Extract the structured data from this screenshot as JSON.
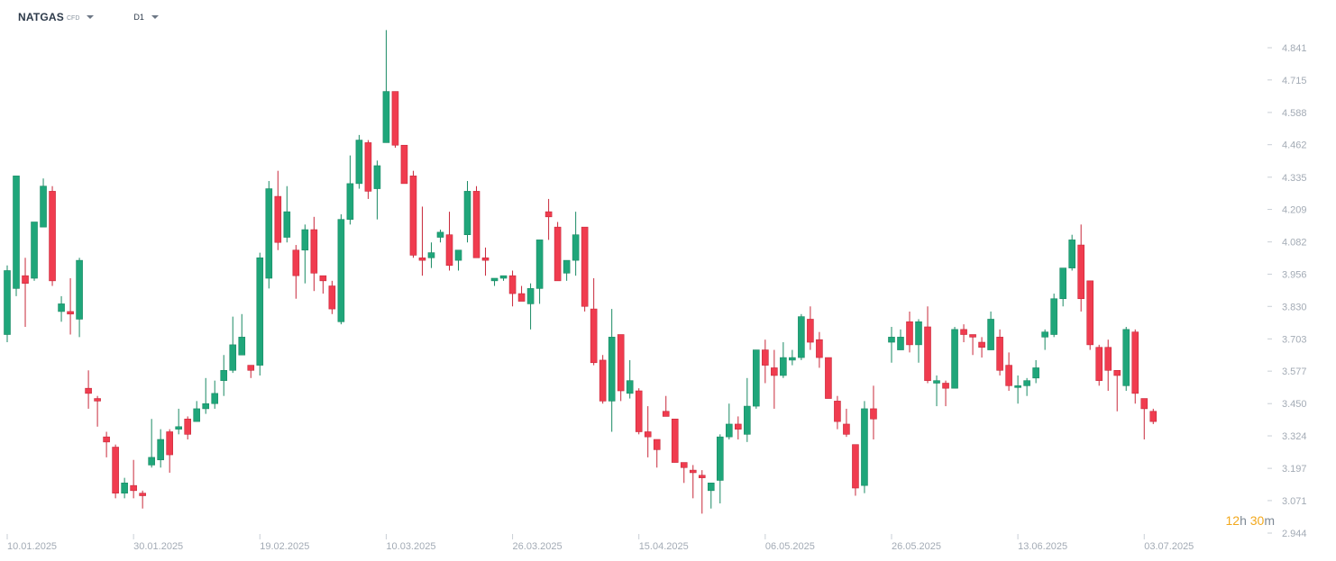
{
  "toolbar": {
    "symbol": "NATGAS",
    "symbol_sub": "CFD",
    "timeframe": "D1"
  },
  "countdown": {
    "hours": "12",
    "h": "h",
    "minutes": "30",
    "m": "m"
  },
  "colors": {
    "up": "#1fa67a",
    "down": "#f03c4f",
    "wick_up": "#1a8a64",
    "wick_down": "#c8283a",
    "axis_text": "#a3abb5",
    "timer": "#f2a81d"
  },
  "chart_data": {
    "type": "candlestick",
    "title": "",
    "ylim": [
      2.944,
      4.92
    ],
    "y_ticks": [
      "4.841",
      "4.715",
      "4.588",
      "4.462",
      "4.335",
      "4.209",
      "4.082",
      "3.956",
      "3.830",
      "3.703",
      "3.577",
      "3.450",
      "3.324",
      "3.197",
      "3.071",
      "2.944"
    ],
    "x_labels": [
      {
        "index": 0,
        "label": "10.01.2025"
      },
      {
        "index": 14,
        "label": "30.01.2025"
      },
      {
        "index": 28,
        "label": "19.02.2025"
      },
      {
        "index": 42,
        "label": "10.03.2025"
      },
      {
        "index": 56,
        "label": "26.03.2025"
      },
      {
        "index": 70,
        "label": "15.04.2025"
      },
      {
        "index": 84,
        "label": "06.05.2025"
      },
      {
        "index": 98,
        "label": "26.05.2025"
      },
      {
        "index": 112,
        "label": "13.06.2025"
      },
      {
        "index": 126,
        "label": "03.07.2025"
      }
    ],
    "candles": [
      [
        3.72,
        3.97,
        3.69,
        3.99
      ],
      [
        3.9,
        4.34,
        3.87,
        4.34
      ],
      [
        3.95,
        3.92,
        3.75,
        4.02
      ],
      [
        3.94,
        4.16,
        3.93,
        4.16
      ],
      [
        4.14,
        4.3,
        4.14,
        4.33
      ],
      [
        4.28,
        3.93,
        3.91,
        4.3
      ],
      [
        3.81,
        3.84,
        3.77,
        3.87
      ],
      [
        3.81,
        3.8,
        3.72,
        3.94
      ],
      [
        3.78,
        4.01,
        3.71,
        4.02
      ],
      [
        3.51,
        3.49,
        3.43,
        3.58
      ],
      [
        3.47,
        3.46,
        3.36,
        3.48
      ],
      [
        3.32,
        3.3,
        3.24,
        3.34
      ],
      [
        3.28,
        3.1,
        3.08,
        3.29
      ],
      [
        3.1,
        3.14,
        3.08,
        3.16
      ],
      [
        3.13,
        3.11,
        3.08,
        3.23
      ],
      [
        3.1,
        3.09,
        3.04,
        3.11
      ],
      [
        3.21,
        3.24,
        3.2,
        3.39
      ],
      [
        3.23,
        3.31,
        3.2,
        3.35
      ],
      [
        3.34,
        3.25,
        3.18,
        3.35
      ],
      [
        3.35,
        3.36,
        3.33,
        3.43
      ],
      [
        3.39,
        3.33,
        3.31,
        3.4
      ],
      [
        3.38,
        3.43,
        3.38,
        3.46
      ],
      [
        3.43,
        3.45,
        3.41,
        3.55
      ],
      [
        3.45,
        3.49,
        3.43,
        3.54
      ],
      [
        3.54,
        3.58,
        3.48,
        3.64
      ],
      [
        3.58,
        3.68,
        3.57,
        3.79
      ],
      [
        3.64,
        3.71,
        3.65,
        3.8
      ],
      [
        3.6,
        3.58,
        3.55,
        3.6
      ],
      [
        3.6,
        4.02,
        3.56,
        4.04
      ],
      [
        3.94,
        4.29,
        3.9,
        4.32
      ],
      [
        4.26,
        4.08,
        4.05,
        4.36
      ],
      [
        4.1,
        4.2,
        4.08,
        4.3
      ],
      [
        4.05,
        3.95,
        3.86,
        4.07
      ],
      [
        4.05,
        4.13,
        3.92,
        4.15
      ],
      [
        4.13,
        3.96,
        3.89,
        4.18
      ],
      [
        3.95,
        3.93,
        3.88,
        3.95
      ],
      [
        3.91,
        3.82,
        3.8,
        3.93
      ],
      [
        3.77,
        4.17,
        3.76,
        4.19
      ],
      [
        4.17,
        4.31,
        4.15,
        4.42
      ],
      [
        4.31,
        4.48,
        4.29,
        4.5
      ],
      [
        4.47,
        4.28,
        4.25,
        4.48
      ],
      [
        4.29,
        4.38,
        4.17,
        4.4
      ],
      [
        4.47,
        4.67,
        4.47,
        4.91
      ],
      [
        4.67,
        4.46,
        4.45,
        4.67
      ],
      [
        4.46,
        4.31,
        4.33,
        4.46
      ],
      [
        4.34,
        4.03,
        4.02,
        4.36
      ],
      [
        4.02,
        4.01,
        3.95,
        4.22
      ],
      [
        4.02,
        4.04,
        3.98,
        4.08
      ],
      [
        4.1,
        4.12,
        4.08,
        4.13
      ],
      [
        4.11,
        3.99,
        3.97,
        4.2
      ],
      [
        4.01,
        4.05,
        3.97,
        4.05
      ],
      [
        4.11,
        4.28,
        4.08,
        4.32
      ],
      [
        4.28,
        4.02,
        4.05,
        4.3
      ],
      [
        4.02,
        4.01,
        3.95,
        4.06
      ],
      [
        3.93,
        3.94,
        3.91,
        3.94
      ],
      [
        3.94,
        3.95,
        3.93,
        3.95
      ],
      [
        3.95,
        3.88,
        3.83,
        3.97
      ],
      [
        3.88,
        3.85,
        3.86,
        3.91
      ],
      [
        3.84,
        3.9,
        3.74,
        3.92
      ],
      [
        3.9,
        4.09,
        3.84,
        4.09
      ],
      [
        4.2,
        4.18,
        4.09,
        4.25
      ],
      [
        4.14,
        3.93,
        3.93,
        4.16
      ],
      [
        3.96,
        4.01,
        3.93,
        4.01
      ],
      [
        4.01,
        4.11,
        3.95,
        4.2
      ],
      [
        4.14,
        3.83,
        3.81,
        4.14
      ],
      [
        3.82,
        3.61,
        3.6,
        3.94
      ],
      [
        3.62,
        3.46,
        3.45,
        3.64
      ],
      [
        3.46,
        3.71,
        3.34,
        3.82
      ],
      [
        3.72,
        3.5,
        3.46,
        3.72
      ],
      [
        3.49,
        3.54,
        3.47,
        3.62
      ],
      [
        3.5,
        3.34,
        3.33,
        3.51
      ],
      [
        3.34,
        3.32,
        3.24,
        3.44
      ],
      [
        3.31,
        3.27,
        3.2,
        3.31
      ],
      [
        3.42,
        3.4,
        3.41,
        3.48
      ],
      [
        3.39,
        3.22,
        3.22,
        3.39
      ],
      [
        3.22,
        3.2,
        3.14,
        3.21
      ],
      [
        3.19,
        3.18,
        3.08,
        3.21
      ],
      [
        3.17,
        3.16,
        3.02,
        3.19
      ],
      [
        3.11,
        3.14,
        3.04,
        3.14
      ],
      [
        3.15,
        3.32,
        3.06,
        3.33
      ],
      [
        3.32,
        3.37,
        3.31,
        3.45
      ],
      [
        3.37,
        3.35,
        3.31,
        3.4
      ],
      [
        3.33,
        3.44,
        3.3,
        3.55
      ],
      [
        3.44,
        3.66,
        3.43,
        3.66
      ],
      [
        3.66,
        3.6,
        3.53,
        3.7
      ],
      [
        3.59,
        3.56,
        3.43,
        3.66
      ],
      [
        3.56,
        3.63,
        3.55,
        3.69
      ],
      [
        3.62,
        3.63,
        3.6,
        3.66
      ],
      [
        3.63,
        3.79,
        3.62,
        3.8
      ],
      [
        3.78,
        3.69,
        3.66,
        3.83
      ],
      [
        3.7,
        3.63,
        3.59,
        3.73
      ],
      [
        3.63,
        3.47,
        3.48,
        3.63
      ],
      [
        3.46,
        3.38,
        3.35,
        3.48
      ],
      [
        3.37,
        3.33,
        3.32,
        3.43
      ],
      [
        3.29,
        3.12,
        3.09,
        3.28
      ],
      [
        3.13,
        3.43,
        3.1,
        3.46
      ],
      [
        3.43,
        3.39,
        3.31,
        3.52
      ],
      null,
      [
        3.69,
        3.71,
        3.61,
        3.75
      ],
      [
        3.66,
        3.71,
        3.66,
        3.74
      ],
      [
        3.77,
        3.68,
        3.65,
        3.81
      ],
      [
        3.68,
        3.77,
        3.61,
        3.78
      ],
      [
        3.75,
        3.54,
        3.53,
        3.83
      ],
      [
        3.53,
        3.54,
        3.44,
        3.56
      ],
      [
        3.53,
        3.51,
        3.44,
        3.54
      ],
      [
        3.51,
        3.74,
        3.51,
        3.75
      ],
      [
        3.74,
        3.72,
        3.69,
        3.76
      ],
      [
        3.72,
        3.71,
        3.64,
        3.72
      ],
      [
        3.69,
        3.67,
        3.63,
        3.71
      ],
      [
        3.66,
        3.78,
        3.66,
        3.81
      ],
      [
        3.71,
        3.58,
        3.56,
        3.74
      ],
      [
        3.6,
        3.52,
        3.5,
        3.65
      ],
      [
        3.52,
        3.52,
        3.45,
        3.56
      ],
      [
        3.52,
        3.54,
        3.48,
        3.55
      ],
      [
        3.55,
        3.59,
        3.53,
        3.62
      ],
      [
        3.71,
        3.73,
        3.66,
        3.74
      ],
      [
        3.72,
        3.86,
        3.71,
        3.88
      ],
      [
        3.86,
        3.98,
        3.83,
        3.98
      ],
      [
        3.98,
        4.09,
        3.97,
        4.11
      ],
      [
        4.07,
        3.86,
        3.81,
        4.15
      ],
      [
        3.93,
        3.68,
        3.66,
        3.93
      ],
      [
        3.67,
        3.54,
        3.52,
        3.68
      ],
      [
        3.67,
        3.58,
        3.5,
        3.7
      ],
      [
        3.58,
        3.56,
        3.42,
        3.57
      ],
      [
        3.52,
        3.74,
        3.5,
        3.75
      ],
      [
        3.73,
        3.49,
        3.45,
        3.74
      ],
      [
        3.47,
        3.43,
        3.31,
        3.47
      ],
      [
        3.42,
        3.38,
        3.37,
        3.43
      ]
    ]
  }
}
